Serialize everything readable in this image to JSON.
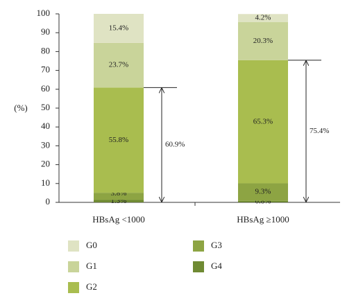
{
  "chart_data": {
    "type": "stacked_bar",
    "y_label": "(%)",
    "categories": [
      "HBsAg <1000",
      "HBsAg ≥1000"
    ],
    "series": [
      {
        "name": "G4",
        "color": "#6f8a33",
        "values": [
          1.3,
          0.8
        ],
        "value_labels": [
          "1.3%",
          "0.8%"
        ]
      },
      {
        "name": "G3",
        "color": "#8da443",
        "values": [
          3.8,
          9.3
        ],
        "value_labels": [
          "3.8%",
          "9.3%"
        ]
      },
      {
        "name": "G2",
        "color": "#a9bd4f",
        "values": [
          55.8,
          65.3
        ],
        "value_labels": [
          "55.8%",
          "65.3%"
        ]
      },
      {
        "name": "G1",
        "color": "#c9d49a",
        "values": [
          23.7,
          20.3
        ],
        "value_labels": [
          "23.7%",
          "20.3%"
        ]
      },
      {
        "name": "G0",
        "color": "#dfe3c3",
        "values": [
          15.4,
          4.2
        ],
        "value_labels": [
          "15.4%",
          "4.2%"
        ]
      }
    ],
    "annotations": [
      {
        "text": "60.9%",
        "value": 60.9
      },
      {
        "text": "75.4%",
        "value": 75.4
      }
    ],
    "ylim": [
      0,
      100
    ],
    "yticks": [
      0,
      10,
      20,
      30,
      40,
      50,
      60,
      70,
      80,
      90,
      100
    ]
  }
}
